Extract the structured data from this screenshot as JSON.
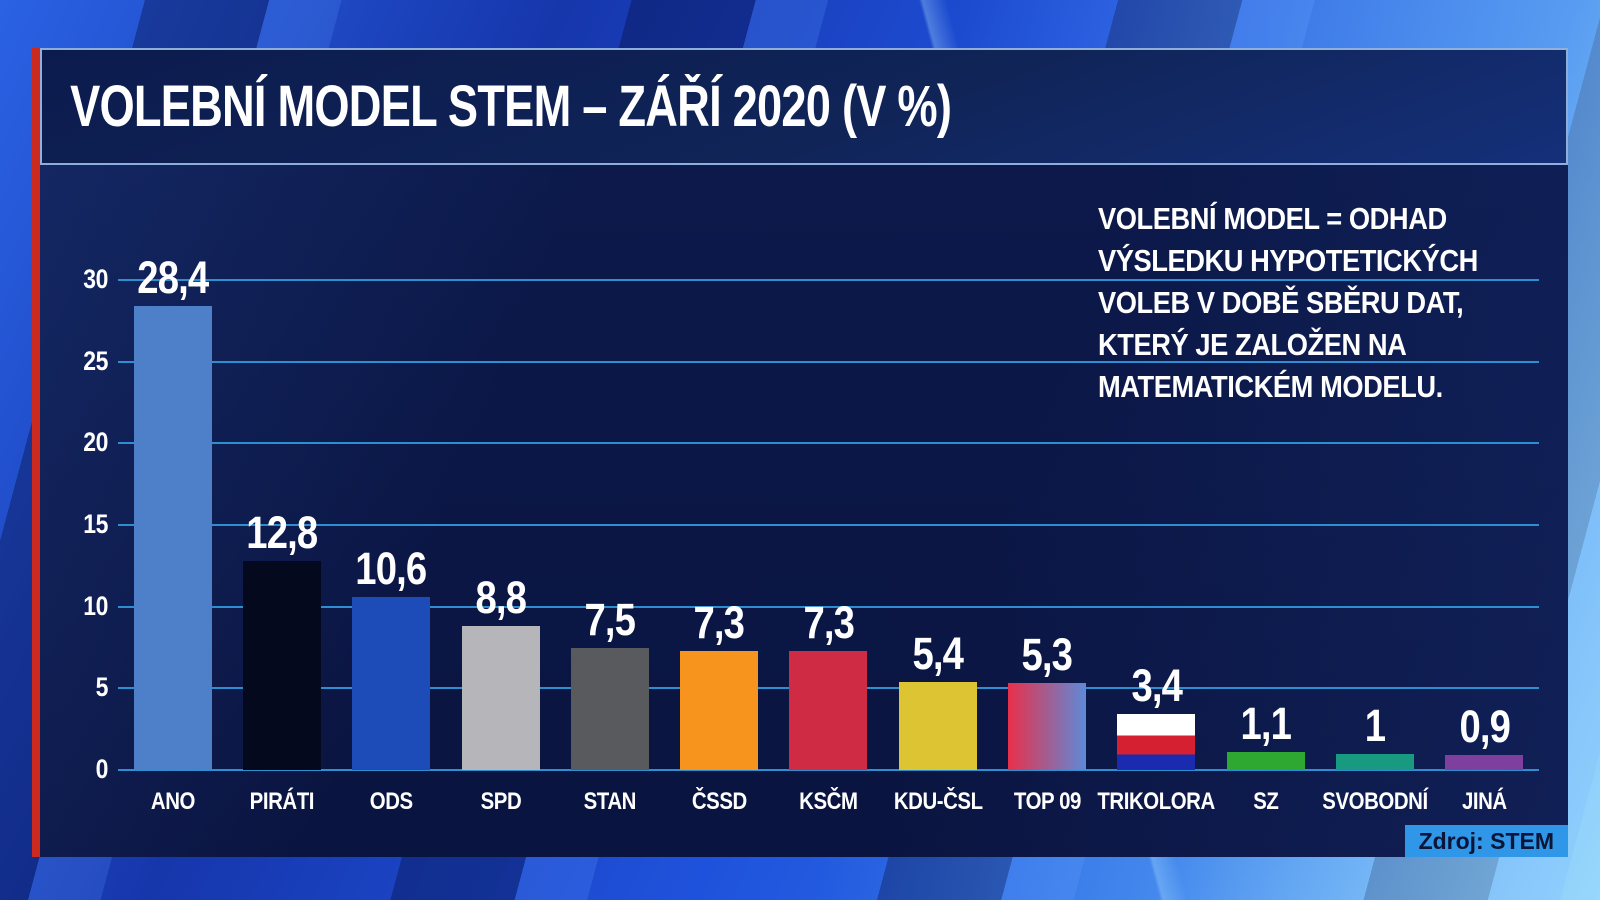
{
  "title": "VOLEBNÍ MODEL STEM – ZÁŘÍ 2020 (V %)",
  "annotation": "VOLEBNÍ MODEL = ODHAD\nVÝSLEDKU HYPOTETICKÝCH\nVOLEB V DOBĚ SBĚRU DAT,\nKTERÝ JE ZALOŽEN NA\nMATEMATICKÉM MODELU.",
  "source": "Zdroj: STEM",
  "colors": {
    "panel_bg": "#0a1440",
    "frame_blue": "#1f52dc",
    "red_stripe": "#cc2a1e",
    "gridline": "#2e8fd0",
    "badge_bg": "#2f96e8",
    "text": "#ffffff"
  },
  "chart_data": {
    "type": "bar",
    "title": "VOLEBNÍ MODEL STEM – ZÁŘÍ 2020 (V %)",
    "xlabel": "",
    "ylabel": "",
    "ylim": [
      0,
      30
    ],
    "yticks": [
      0,
      5,
      10,
      15,
      20,
      25,
      30
    ],
    "grid": true,
    "legend": "none",
    "categories": [
      "ANO",
      "PIRÁTI",
      "ODS",
      "SPD",
      "STAN",
      "ČSSD",
      "KSČM",
      "KDU-ČSL",
      "TOP 09",
      "TRIKOLORA",
      "SZ",
      "SVOBODNÍ",
      "JINÁ"
    ],
    "values": [
      28.4,
      12.8,
      10.6,
      8.8,
      7.5,
      7.3,
      7.3,
      5.4,
      5.3,
      3.4,
      1.1,
      1,
      0.9
    ],
    "value_labels": [
      "28,4",
      "12,8",
      "10,6",
      "8,8",
      "7,5",
      "7,3",
      "7,3",
      "5,4",
      "5,3",
      "3,4",
      "1,1",
      "1",
      "0,9"
    ],
    "bar_fills": [
      "#4d80c8",
      "#05091e",
      "#1d4cb8",
      "#b6b6ba",
      "#595a5e",
      "#f7941e",
      "#cf2b45",
      "#ddc433",
      "linear-gradient(90deg,#e8304a,#5e8ad8)",
      "linear-gradient(180deg,#ffffff 0 38%,#d42030 38% 72%,#1a2bb0 72% 100%)",
      "#2fa832",
      "#189a80",
      "#7e3f9e"
    ]
  }
}
